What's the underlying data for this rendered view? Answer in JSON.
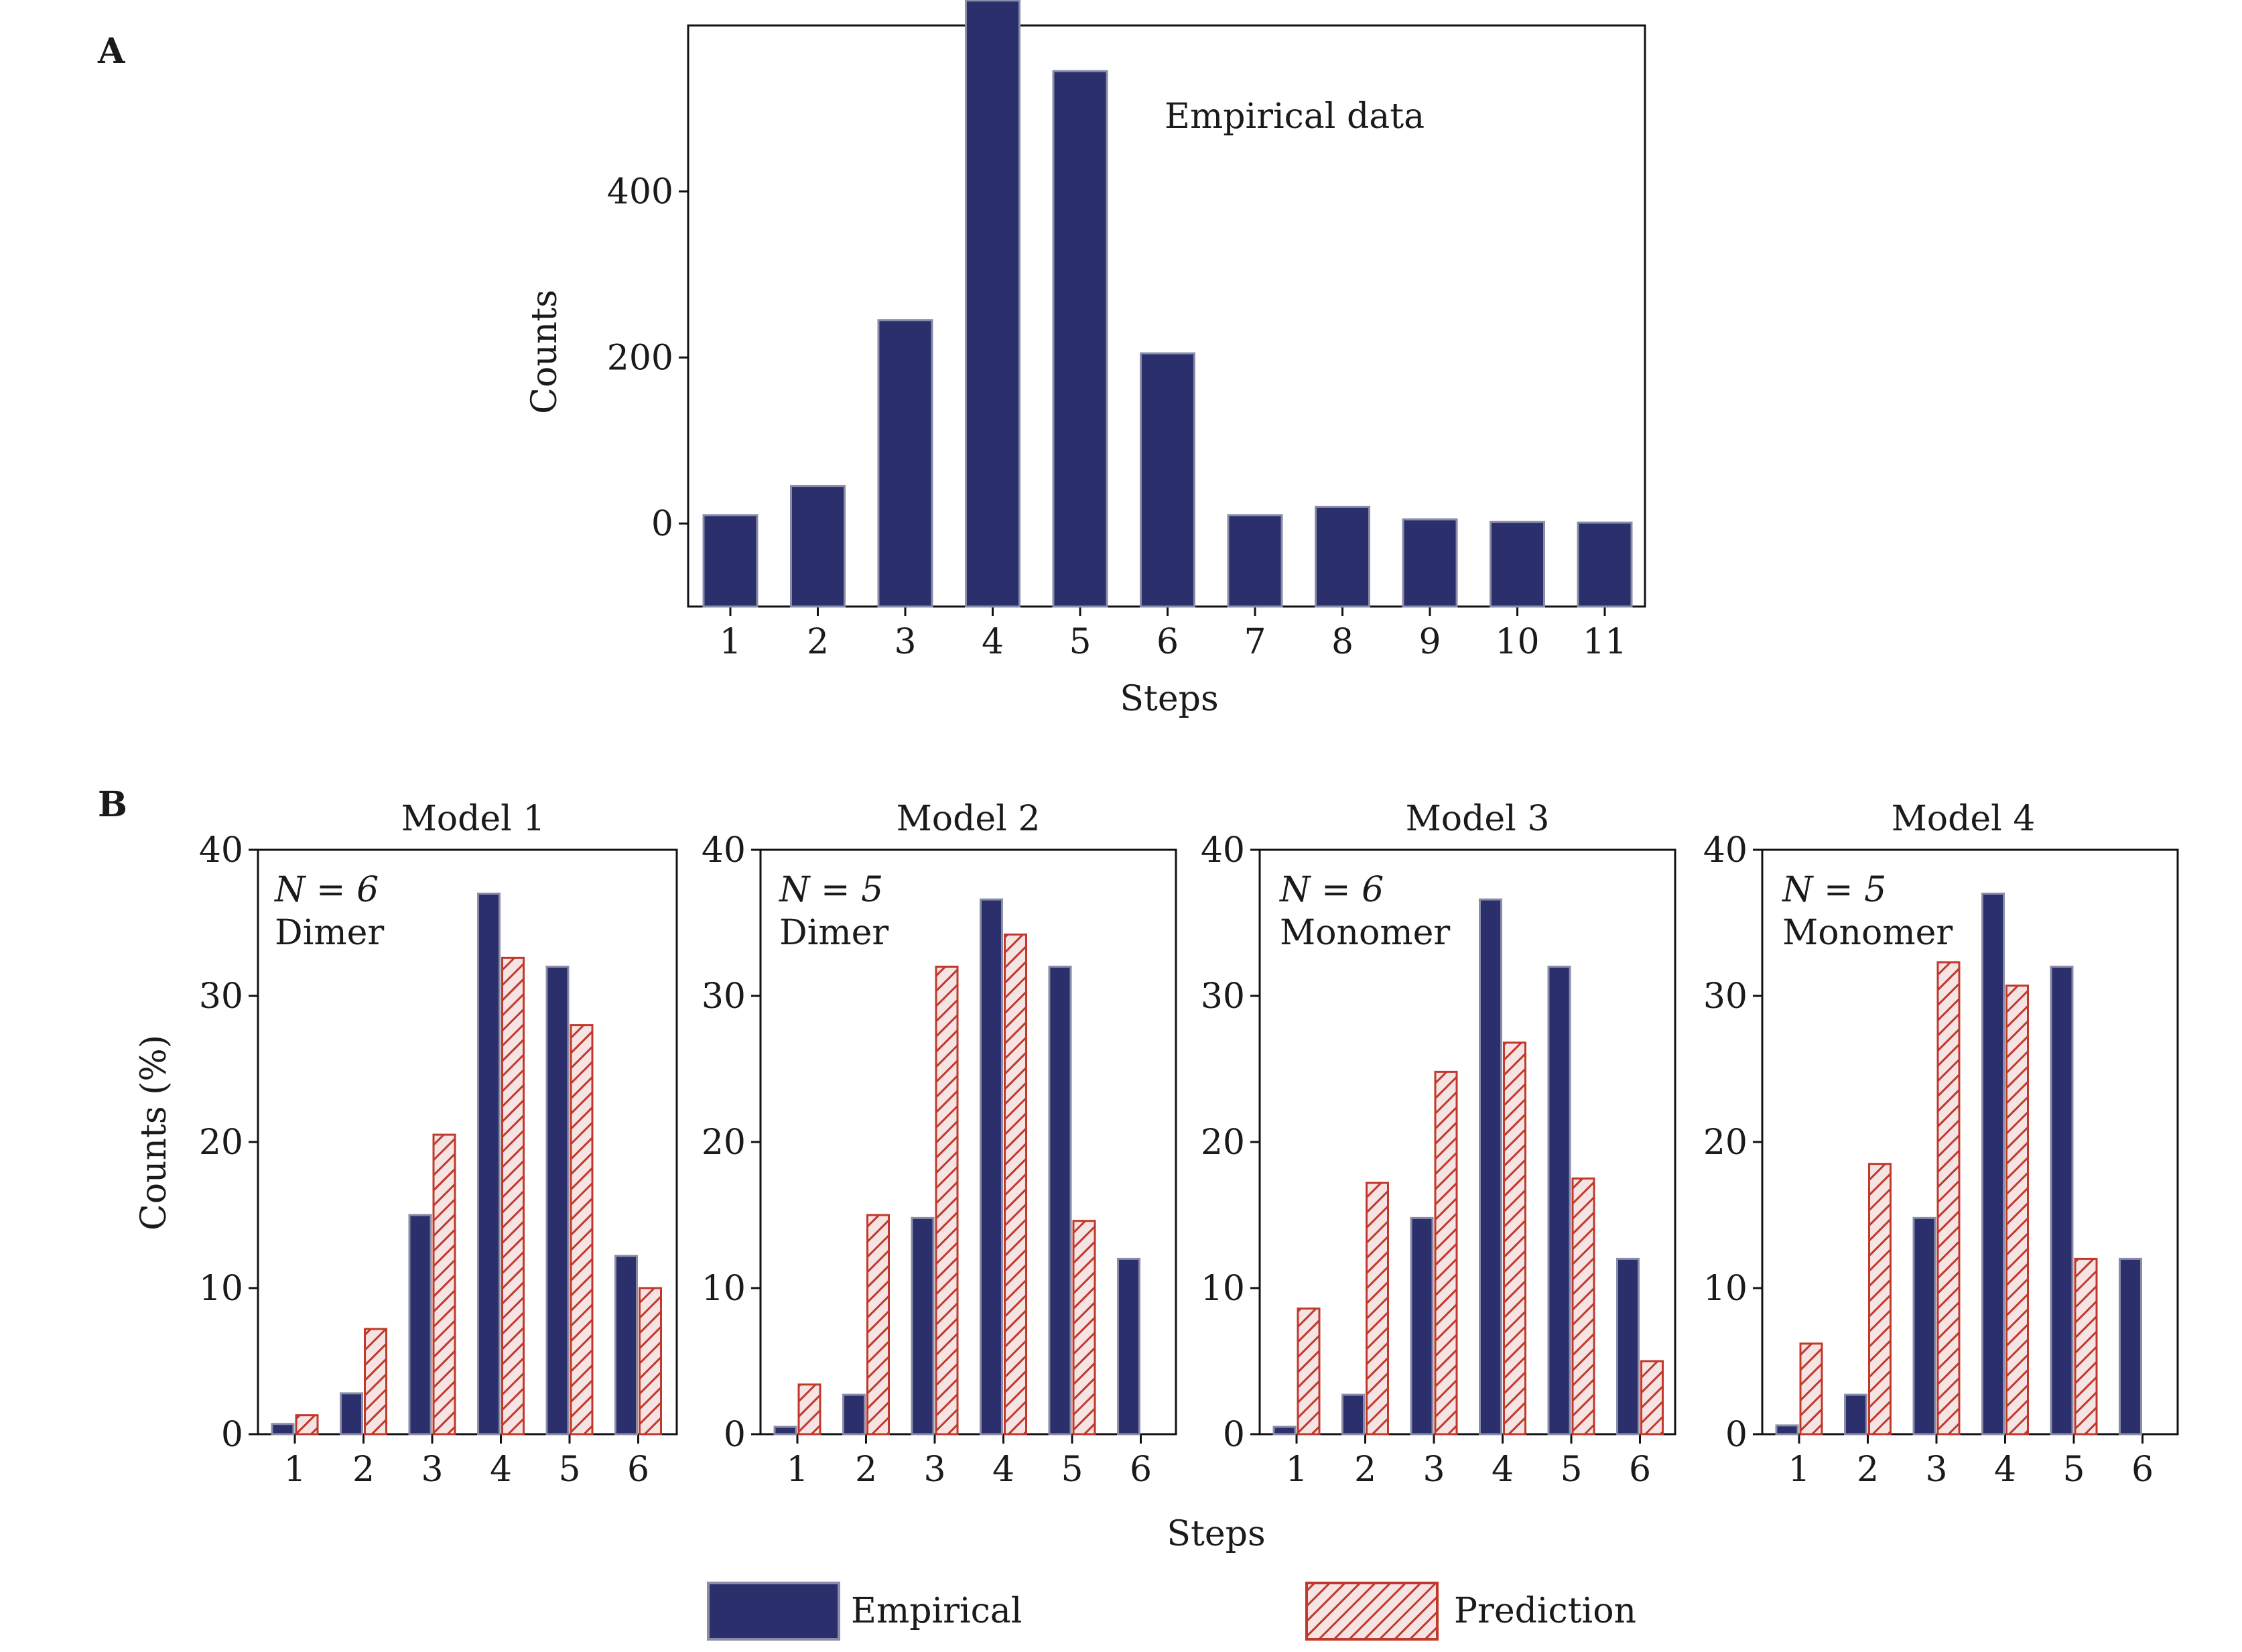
{
  "colors": {
    "empirical_fill": "#2b2f6b",
    "empirical_edge": "#8a8ca8",
    "prediction_stroke": "#c0392b",
    "prediction_bg": "#f6e3e3",
    "axis": "#111111"
  },
  "panel_labels": {
    "a": "A",
    "b": "B"
  },
  "legend": {
    "empirical": "Empirical",
    "prediction": "Prediction"
  },
  "shared_xlabel": "Steps",
  "chart_data": [
    {
      "id": "A",
      "type": "bar",
      "categories": [
        "1",
        "2",
        "3",
        "4",
        "5",
        "6",
        "7",
        "8",
        "9",
        "10",
        "11"
      ],
      "series": [
        {
          "values": [
            10,
            45,
            245,
            630,
            545,
            205,
            10,
            20,
            5,
            2,
            1
          ]
        }
      ],
      "annotation": "Empirical data",
      "xlabel": "Steps",
      "ylabel": "Counts",
      "yticks": [
        0,
        200,
        400
      ],
      "ylim": [
        -100,
        600
      ]
    },
    {
      "id": "B1",
      "type": "bar",
      "title": "Model 1",
      "annotation_line1": "N = 6",
      "annotation_line2": "Dimer",
      "categories": [
        "1",
        "2",
        "3",
        "4",
        "5",
        "6"
      ],
      "series": [
        {
          "name": "Empirical",
          "values": [
            0.7,
            2.8,
            15,
            37,
            32,
            12.2
          ]
        },
        {
          "name": "Prediction",
          "values": [
            1.3,
            7.2,
            20.5,
            32.6,
            28,
            10
          ]
        }
      ],
      "ylabel": "Counts (%)",
      "yticks": [
        0,
        10,
        20,
        30,
        40
      ],
      "ylim": [
        0,
        40
      ]
    },
    {
      "id": "B2",
      "type": "bar",
      "title": "Model 2",
      "annotation_line1": "N = 5",
      "annotation_line2": "Dimer",
      "categories": [
        "1",
        "2",
        "3",
        "4",
        "5",
        "6"
      ],
      "series": [
        {
          "name": "Empirical",
          "values": [
            0.5,
            2.7,
            14.8,
            36.6,
            32,
            12
          ]
        },
        {
          "name": "Prediction",
          "values": [
            3.4,
            15,
            32,
            34.2,
            14.6,
            0
          ]
        }
      ],
      "yticks": [
        0,
        10,
        20,
        30,
        40
      ],
      "ylim": [
        0,
        40
      ]
    },
    {
      "id": "B3",
      "type": "bar",
      "title": "Model 3",
      "annotation_line1": "N = 6",
      "annotation_line2": "Monomer",
      "categories": [
        "1",
        "2",
        "3",
        "4",
        "5",
        "6"
      ],
      "series": [
        {
          "name": "Empirical",
          "values": [
            0.5,
            2.7,
            14.8,
            36.6,
            32,
            12
          ]
        },
        {
          "name": "Prediction",
          "values": [
            8.6,
            17.2,
            24.8,
            26.8,
            17.5,
            5
          ]
        }
      ],
      "yticks": [
        0,
        10,
        20,
        30,
        40
      ],
      "ylim": [
        0,
        40
      ]
    },
    {
      "id": "B4",
      "type": "bar",
      "title": "Model 4",
      "annotation_line1": "N = 5",
      "annotation_line2": "Monomer",
      "categories": [
        "1",
        "2",
        "3",
        "4",
        "5",
        "6"
      ],
      "series": [
        {
          "name": "Empirical",
          "values": [
            0.6,
            2.7,
            14.8,
            37,
            32,
            12
          ]
        },
        {
          "name": "Prediction",
          "values": [
            6.2,
            18.5,
            32.3,
            30.7,
            12,
            0
          ]
        }
      ],
      "yticks": [
        0,
        10,
        20,
        30,
        40
      ],
      "ylim": [
        0,
        40
      ]
    }
  ]
}
